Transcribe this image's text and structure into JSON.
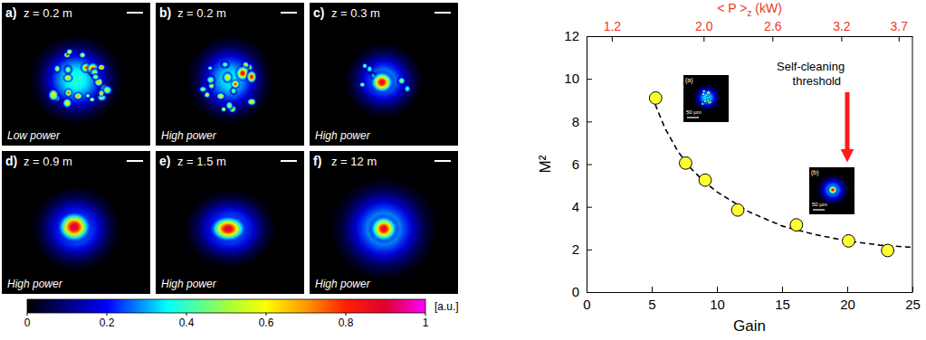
{
  "chart_data": {
    "type": "scatter",
    "x_label": "Gain",
    "y_label": "M²",
    "x2_label": "< P >z (kW)",
    "xlim": [
      0,
      25
    ],
    "xticks": [
      0,
      5,
      10,
      15,
      20,
      25
    ],
    "ylim": [
      0,
      12
    ],
    "yticks": [
      0,
      2,
      4,
      6,
      8,
      10,
      12
    ],
    "x2lim": [
      0.98,
      3.82
    ],
    "x2ticks": [
      1.2,
      {
        "value": 2,
        "label": "2.0"
      },
      2.6,
      3.2,
      3.7
    ],
    "series": [
      {
        "type": "scatter",
        "x": [
          5.3,
          7.6,
          9.1,
          11.6,
          16.1,
          20.1,
          23.1
        ],
        "values": [
          9.1,
          6.05,
          5.25,
          3.85,
          3.15,
          2.4,
          1.95
        ],
        "color": "#ffff33",
        "marker": "circle"
      },
      {
        "type": "line",
        "x": [
          5,
          6,
          7,
          8,
          9,
          10,
          12.5,
          15,
          17.5,
          20,
          22.5,
          25
        ],
        "values": [
          9.2,
          7.7,
          6.6,
          5.8,
          5.2,
          4.7,
          3.75,
          3.1,
          2.7,
          2.4,
          2.2,
          2.1
        ],
        "color": "#000000",
        "line_style": "dashed"
      }
    ],
    "annotations": [
      "Self-cleaning threshold"
    ],
    "insets": [
      {
        "label": "(a)",
        "scale_bar": "50 µm"
      },
      {
        "label": "(b)",
        "scale_bar": "50 µm"
      }
    ]
  },
  "panels": [
    {
      "label": "a)",
      "z": "z = 0.2 m",
      "power": "Low power"
    },
    {
      "label": "b)",
      "z": "z = 0.2 m",
      "power": "High power"
    },
    {
      "label": "c)",
      "z": "z = 0.3 m",
      "power": "High power"
    },
    {
      "label": "d)",
      "z": "z = 0.9 m",
      "power": "High power"
    },
    {
      "label": "e)",
      "z": "z = 1.5 m",
      "power": "High power"
    },
    {
      "label": "f)",
      "z": "z = 12 m",
      "power": "High power"
    }
  ],
  "colorbar": {
    "range": [
      0,
      1
    ],
    "ticks": [
      0,
      0.2,
      0.4,
      0.6,
      0.8,
      1
    ],
    "label": "[a.u.]"
  }
}
